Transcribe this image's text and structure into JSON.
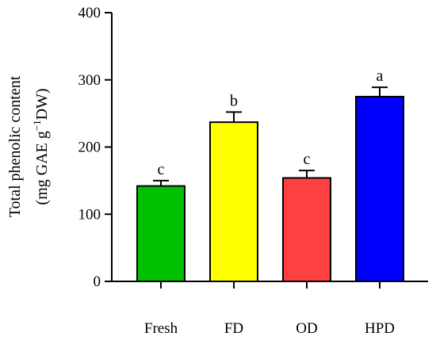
{
  "chart_data": {
    "type": "bar",
    "categories": [
      "Fresh",
      "FD",
      "OD",
      "HPD"
    ],
    "values": [
      142,
      237,
      154,
      275
    ],
    "error": [
      8,
      15,
      11,
      14
    ],
    "significance_letters": [
      "c",
      "b",
      "c",
      "a"
    ],
    "bar_colors": [
      "#00c000",
      "#ffff00",
      "#ff4040",
      "#0000ff"
    ],
    "ylabel_line1": "Total phenolic content",
    "ylabel_line2_prefix": "(mg GAE g",
    "ylabel_line2_sup": "−1",
    "ylabel_line2_suffix": "DW)",
    "ylim": [
      0,
      400
    ],
    "yticks": [
      0,
      100,
      200,
      300,
      400
    ],
    "grid": false
  }
}
